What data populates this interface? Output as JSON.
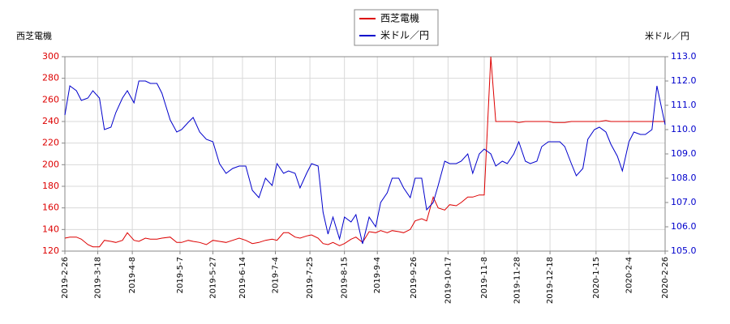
{
  "chart_data": {
    "type": "line",
    "y_label": "西芝電機",
    "y2_label": "米ドル／円",
    "x": [
      "2019-2-26",
      "2019-3-1",
      "2019-3-5",
      "2019-3-8",
      "2019-3-12",
      "2019-3-15",
      "2019-3-19",
      "2019-3-22",
      "2019-3-26",
      "2019-3-29",
      "2019-4-2",
      "2019-4-5",
      "2019-4-9",
      "2019-4-12",
      "2019-4-16",
      "2019-4-19",
      "2019-4-23",
      "2019-4-26",
      "2019-5-1",
      "2019-5-5",
      "2019-5-8",
      "2019-5-12",
      "2019-5-15",
      "2019-5-19",
      "2019-5-23",
      "2019-5-27",
      "2019-5-31",
      "2019-6-4",
      "2019-6-8",
      "2019-6-12",
      "2019-6-16",
      "2019-6-20",
      "2019-6-24",
      "2019-6-28",
      "2019-7-2",
      "2019-7-5",
      "2019-7-9",
      "2019-7-12",
      "2019-7-16",
      "2019-7-19",
      "2019-7-23",
      "2019-7-26",
      "2019-7-30",
      "2019-8-2",
      "2019-8-5",
      "2019-8-8",
      "2019-8-12",
      "2019-8-15",
      "2019-8-19",
      "2019-8-22",
      "2019-8-26",
      "2019-8-30",
      "2019-9-3",
      "2019-9-6",
      "2019-9-10",
      "2019-9-13",
      "2019-9-17",
      "2019-9-20",
      "2019-9-24",
      "2019-9-27",
      "2019-10-1",
      "2019-10-4",
      "2019-10-8",
      "2019-10-11",
      "2019-10-15",
      "2019-10-18",
      "2019-10-22",
      "2019-10-25",
      "2019-10-29",
      "2019-11-1",
      "2019-11-5",
      "2019-11-8",
      "2019-11-12",
      "2019-11-15",
      "2019-11-19",
      "2019-11-22",
      "2019-11-26",
      "2019-11-29",
      "2019-12-3",
      "2019-12-6",
      "2019-12-10",
      "2019-12-13",
      "2019-12-17",
      "2019-12-20",
      "2019-12-24",
      "2019-12-27",
      "2019-12-31",
      "2020-1-3",
      "2020-1-7",
      "2020-1-10",
      "2020-1-14",
      "2020-1-17",
      "2020-1-21",
      "2020-1-24",
      "2020-1-28",
      "2020-1-31",
      "2020-2-4",
      "2020-2-7",
      "2020-2-11",
      "2020-2-14",
      "2020-2-18",
      "2020-2-21",
      "2020-2-26"
    ],
    "series": [
      {
        "name": "西芝電機",
        "color": "#dd0000",
        "axis": "y",
        "values": [
          132,
          133,
          133,
          131,
          126,
          124,
          124,
          130,
          129,
          128,
          130,
          137,
          130,
          129,
          132,
          131,
          131,
          132,
          133,
          128,
          128,
          130,
          129,
          128,
          126,
          130,
          129,
          128,
          130,
          132,
          130,
          127,
          128,
          130,
          131,
          130,
          137,
          137,
          133,
          132,
          134,
          135,
          132,
          127,
          126,
          128,
          125,
          127,
          131,
          133,
          128,
          138,
          137,
          139,
          137,
          139,
          138,
          137,
          140,
          148,
          150,
          148,
          170,
          160,
          158,
          163,
          162,
          165,
          170,
          170,
          172,
          172,
          300,
          240,
          240,
          240,
          240,
          239,
          240,
          240,
          240,
          240,
          240,
          239,
          239,
          239,
          240,
          240,
          240,
          240,
          240,
          240,
          241,
          240,
          240,
          240,
          240,
          240,
          240,
          240,
          240,
          240,
          240
        ]
      },
      {
        "name": "米ドル／円",
        "color": "#0000cc",
        "axis": "y2",
        "values": [
          110.6,
          111.8,
          111.6,
          111.2,
          111.3,
          111.6,
          111.3,
          110.0,
          110.1,
          110.7,
          111.3,
          111.6,
          111.1,
          112.0,
          112.0,
          111.9,
          111.9,
          111.5,
          110.4,
          109.9,
          110.0,
          110.3,
          110.5,
          109.9,
          109.6,
          109.5,
          108.6,
          108.2,
          108.4,
          108.5,
          108.5,
          107.5,
          107.2,
          108.0,
          107.7,
          108.6,
          108.2,
          108.3,
          108.2,
          107.6,
          108.2,
          108.6,
          108.5,
          106.6,
          105.7,
          106.4,
          105.5,
          106.4,
          106.2,
          106.5,
          105.3,
          106.4,
          106.0,
          107.0,
          107.4,
          108.0,
          108.0,
          107.6,
          107.2,
          108.0,
          108.0,
          106.7,
          107.0,
          107.7,
          108.7,
          108.6,
          108.6,
          108.7,
          109.0,
          108.2,
          109.0,
          109.2,
          109.0,
          108.5,
          108.7,
          108.6,
          109.0,
          109.5,
          108.7,
          108.6,
          108.7,
          109.3,
          109.5,
          109.5,
          109.5,
          109.3,
          108.6,
          108.1,
          108.4,
          109.6,
          110.0,
          110.1,
          109.9,
          109.4,
          108.9,
          108.3,
          109.5,
          109.9,
          109.8,
          109.8,
          110.0,
          111.8,
          110.2
        ]
      }
    ],
    "xlim": [
      "2019-2-26",
      "2020-2-26"
    ],
    "xticks": [
      "2019-2-26",
      "2019-3-18",
      "2019-4-8",
      "2019-5-7",
      "2019-5-27",
      "2019-6-14",
      "2019-7-4",
      "2019-7-25",
      "2019-8-15",
      "2019-9-4",
      "2019-9-26",
      "2019-10-17",
      "2019-11-8",
      "2019-11-28",
      "2019-12-18",
      "2020-1-15",
      "2020-2-4",
      "2020-2-26"
    ],
    "ylim": [
      120,
      300
    ],
    "yticks": [
      120,
      140,
      160,
      180,
      200,
      220,
      240,
      260,
      280,
      300
    ],
    "y2lim": [
      105,
      113
    ],
    "y2ticks": [
      {
        "value": 105,
        "label": "105.0"
      },
      {
        "value": 106,
        "label": "106.0"
      },
      {
        "value": 107,
        "label": "107.0"
      },
      {
        "value": 108,
        "label": "108.0"
      },
      {
        "value": 109,
        "label": "109.0"
      },
      {
        "value": 110,
        "label": "110.0"
      },
      {
        "value": 111,
        "label": "111.0"
      },
      {
        "value": 112,
        "label": "112.0"
      },
      {
        "value": 113,
        "label": "113.0"
      }
    ],
    "grid": true,
    "legend": "top"
  }
}
